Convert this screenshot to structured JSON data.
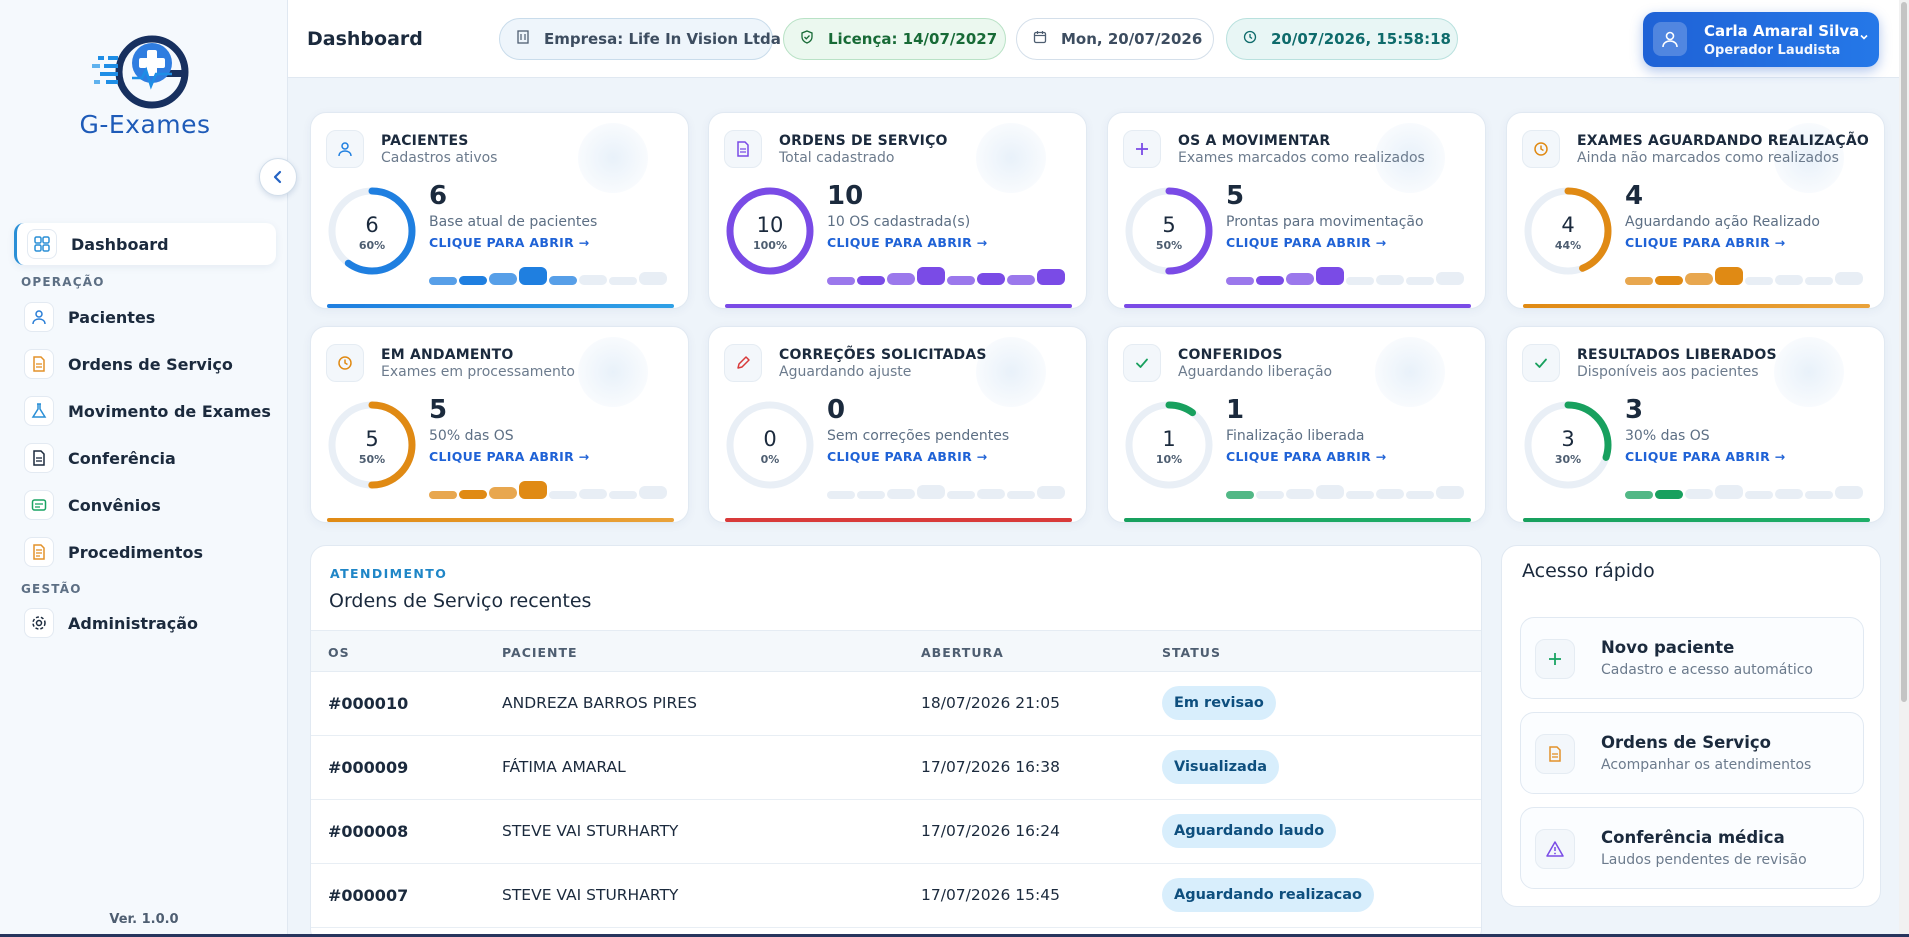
{
  "sidebar": {
    "logo_text": "G-Exames",
    "items": [
      {
        "label": "Dashboard",
        "icon": "grid-icon",
        "color": "#2a8fd6",
        "active": true
      },
      {
        "label": "Pacientes",
        "icon": "user-icon",
        "color": "#2a7ed6"
      },
      {
        "label": "Ordens de Serviço",
        "icon": "document-icon",
        "color": "#e3922a"
      },
      {
        "label": "Movimento de Exames",
        "icon": "flask-icon",
        "color": "#2a8fd6"
      },
      {
        "label": "Conferência",
        "icon": "file-icon",
        "color": "#1b2a3d"
      },
      {
        "label": "Convênios",
        "icon": "card-icon",
        "color": "#19a363"
      },
      {
        "label": "Procedimentos",
        "icon": "list-icon",
        "color": "#e3922a"
      },
      {
        "label": "Administração",
        "icon": "gear-icon",
        "color": "#1b2a3d"
      }
    ],
    "sections": {
      "operacao": "OPERAÇÃO",
      "gestao": "GESTÃO"
    },
    "version": "Ver. 1.0.0"
  },
  "header": {
    "title": "Dashboard",
    "empresa": "Empresa: Life In Vision Ltda",
    "licenca": "Licença: 14/07/2027",
    "date": "Mon, 20/07/2026",
    "datetime": "20/07/2026, 15:58:18",
    "user_name": "Carla Amaral Silva",
    "user_role": "Operador Laudista"
  },
  "cards": [
    {
      "title": "PACIENTES",
      "subtitle": "Cadastros ativos",
      "value": "6",
      "pct_label": "60%",
      "fraction": 0.6,
      "desc": "Base atual de pacientes",
      "open": "CLIQUE PARA ABRIR  →",
      "color": "#1f7fe0",
      "bar": "#2ea0e6",
      "icon": "user-icon",
      "spark_filled": 5
    },
    {
      "title": "ORDENS DE SERVIÇO",
      "subtitle": "Total cadastrado",
      "value": "10",
      "pct_label": "100%",
      "fraction": 1.0,
      "desc": "10 OS cadastrada(s)",
      "open": "CLIQUE PARA ABRIR  →",
      "color": "#7a4be6",
      "bar": "#7a4be6",
      "icon": "document-icon",
      "spark_filled": 8
    },
    {
      "title": "OS A MOVIMENTAR",
      "subtitle": "Exames marcados como realizados",
      "value": "5",
      "pct_label": "50%",
      "fraction": 0.5,
      "desc": "Prontas para movimentação",
      "open": "CLIQUE PARA ABRIR  →",
      "color": "#7a4be6",
      "bar": "#7a4be6",
      "icon": "plus-icon",
      "spark_filled": 4
    },
    {
      "title": "EXAMES AGUARDANDO REALIZAÇÃO",
      "subtitle": "Ainda não marcados como realizados",
      "value": "4",
      "pct_label": "44%",
      "fraction": 0.44,
      "desc": "Aguardando ação Realizado",
      "open": "CLIQUE PARA ABRIR  →",
      "color": "#e08a14",
      "bar": "#e9a23a",
      "icon": "clock-icon",
      "spark_filled": 4
    },
    {
      "title": "EM ANDAMENTO",
      "subtitle": "Exames em processamento",
      "value": "5",
      "pct_label": "50%",
      "fraction": 0.5,
      "desc": "50% das OS",
      "open": "CLIQUE PARA ABRIR  →",
      "color": "#e08a14",
      "bar": "#e9a23a",
      "icon": "clock-icon",
      "spark_filled": 4
    },
    {
      "title": "CORREÇÕES SOLICITADAS",
      "subtitle": "Aguardando ajuste",
      "value": "0",
      "pct_label": "0%",
      "fraction": 0,
      "desc": "Sem correções pendentes",
      "open": "CLIQUE PARA ABRIR  →",
      "color": "#d83a3a",
      "bar": "#d83a3a",
      "icon": "pencil-icon",
      "spark_filled": 0
    },
    {
      "title": "CONFERIDOS",
      "subtitle": "Aguardando liberação",
      "value": "1",
      "pct_label": "10%",
      "fraction": 0.1,
      "desc": "Finalização liberada",
      "open": "CLIQUE PARA ABRIR  →",
      "color": "#18a05e",
      "bar": "#1fae68",
      "icon": "check-icon",
      "spark_filled": 1
    },
    {
      "title": "RESULTADOS LIBERADOS",
      "subtitle": "Disponíveis aos pacientes",
      "value": "3",
      "pct_label": "30%",
      "fraction": 0.3,
      "desc": "30% das OS",
      "open": "CLIQUE PARA ABRIR  →",
      "color": "#18a05e",
      "bar": "#1fae68",
      "icon": "check-icon",
      "spark_filled": 2
    }
  ],
  "table": {
    "eyebrow": "ATENDIMENTO",
    "title": "Ordens de Serviço recentes",
    "columns": [
      "OS",
      "PACIENTE",
      "ABERTURA",
      "STATUS"
    ],
    "rows": [
      {
        "os": "#000010",
        "paciente": "ANDREZA BARROS PIRES",
        "abertura": "18/07/2026 21:05",
        "status": "Em revisao"
      },
      {
        "os": "#000009",
        "paciente": "FÁTIMA AMARAL",
        "abertura": "17/07/2026 16:38",
        "status": "Visualizada"
      },
      {
        "os": "#000008",
        "paciente": "STEVE VAI STURHARTY",
        "abertura": "17/07/2026 16:24",
        "status": "Aguardando laudo"
      },
      {
        "os": "#000007",
        "paciente": "STEVE VAI STURHARTY",
        "abertura": "17/07/2026 15:45",
        "status": "Aguardando realizacao"
      }
    ]
  },
  "quick_access": {
    "title": "Acesso rápido",
    "items": [
      {
        "title": "Novo paciente",
        "subtitle": "Cadastro e acesso automático",
        "icon": "plus-icon",
        "color": "#19a363"
      },
      {
        "title": "Ordens de Serviço",
        "subtitle": "Acompanhar os atendimentos",
        "icon": "document-icon",
        "color": "#e3922a"
      },
      {
        "title": "Conferência médica",
        "subtitle": "Laudos pendentes de revisão",
        "icon": "warning-icon",
        "color": "#7a4be6"
      }
    ]
  }
}
